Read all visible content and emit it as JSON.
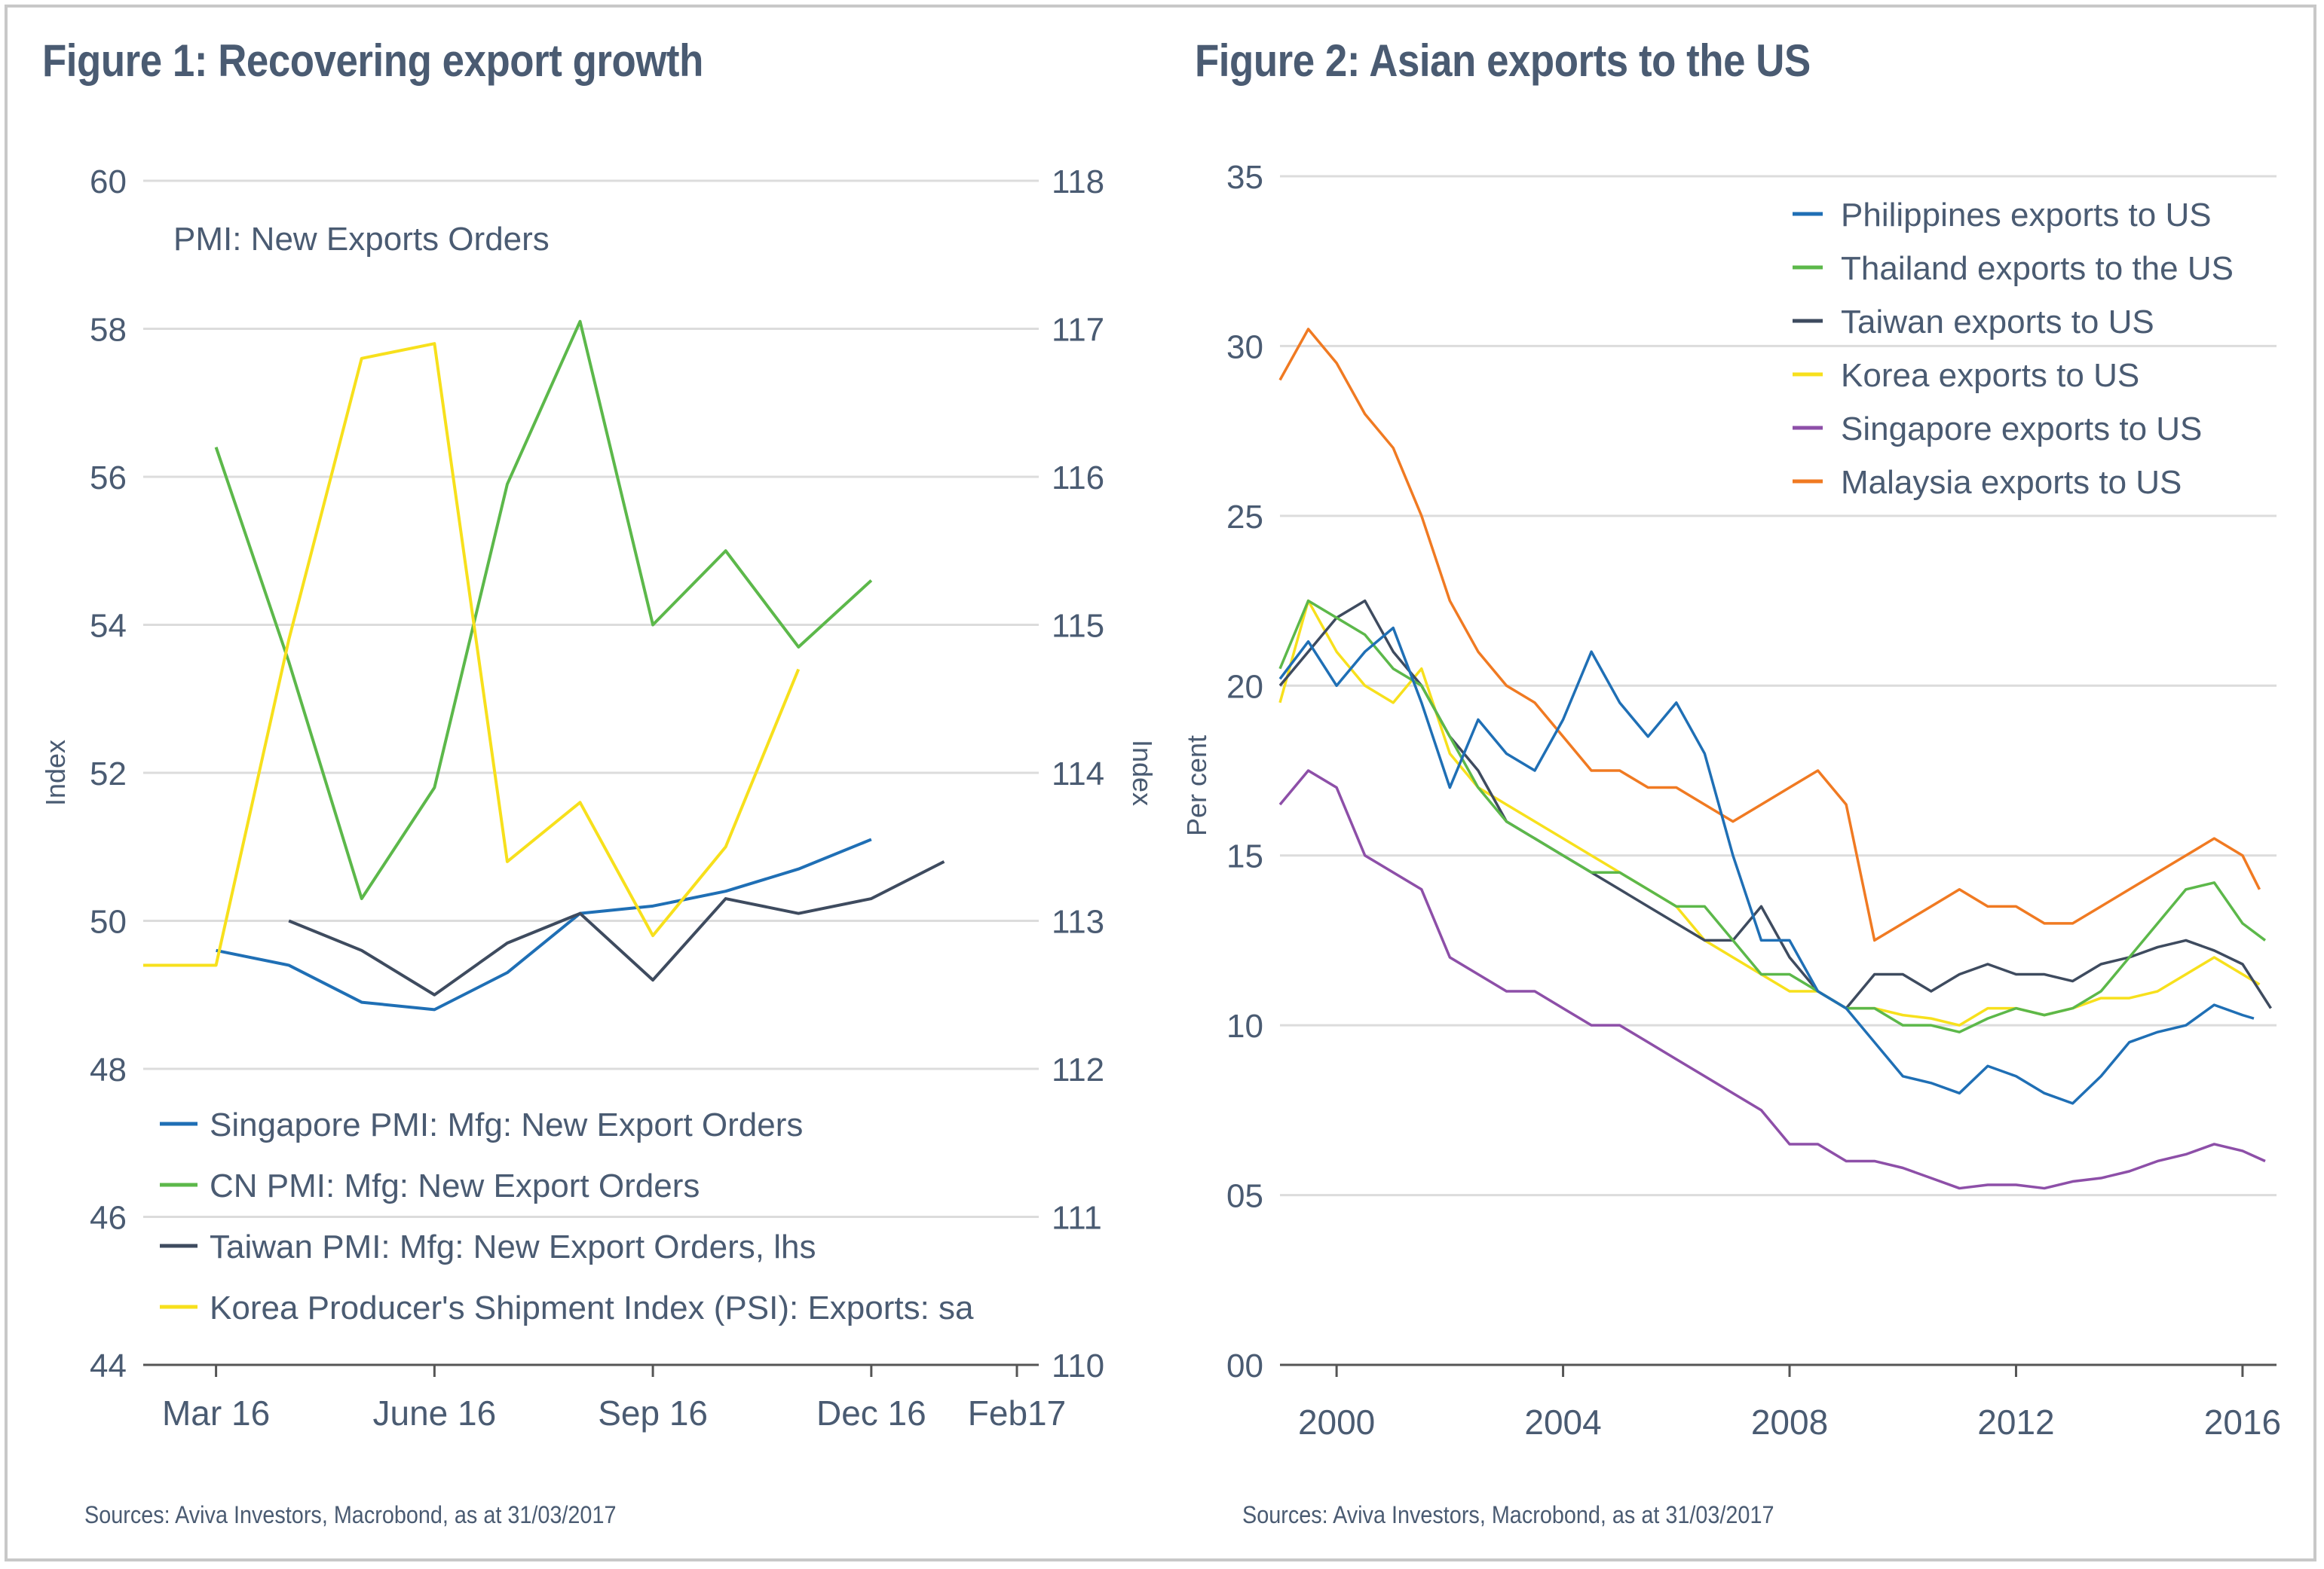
{
  "figure1": {
    "title": "Figure 1: Recovering export growth",
    "source": "Sources: Aviva Investors, Macrobond, as at 31/03/2017"
  },
  "figure2": {
    "title": "Figure 2: Asian exports to the US",
    "source": "Sources: Aviva Investors, Macrobond, as at 31/03/2017"
  },
  "chart_data": [
    {
      "type": "line",
      "annotation": "PMI: New Exports Orders",
      "ylabel_left": "Index",
      "ylabel_right": "Index",
      "ylim_left": [
        44,
        60
      ],
      "ylim_right": [
        110,
        118
      ],
      "yticks_left": [
        "44",
        "46",
        "48",
        "50",
        "52",
        "54",
        "56",
        "58",
        "60"
      ],
      "yticks_right": [
        "110",
        "111",
        "112",
        "113",
        "114",
        "115",
        "116",
        "117",
        "118"
      ],
      "x_labels": [
        "Mar 16",
        "June 16",
        "Sep 16",
        "Dec 16",
        "Feb17"
      ],
      "x_label_months": [
        2,
        5,
        8,
        11,
        13
      ],
      "xlim_months": [
        1,
        13.3
      ],
      "grid": true,
      "legend_position": "bottom-left",
      "series": [
        {
          "name": "Singapore PMI: Mfg: New Export Orders",
          "axis": "left",
          "color": "#1f6fb5",
          "months": [
            2,
            3,
            4,
            5,
            6,
            7,
            8,
            9,
            10,
            11,
            12
          ],
          "values": [
            49.6,
            49.4,
            48.9,
            48.8,
            49.3,
            50.1,
            50.2,
            50.4,
            50.7,
            51.1,
            null
          ]
        },
        {
          "name": "CN PMI: Mfg: New Export Orders",
          "axis": "left",
          "color": "#5cb84a",
          "months": [
            2,
            3,
            4,
            5,
            6,
            7,
            8,
            9,
            10,
            11,
            12
          ],
          "values": [
            56.4,
            53.5,
            50.3,
            51.8,
            55.9,
            58.1,
            54.0,
            55.0,
            53.7,
            54.6,
            null
          ]
        },
        {
          "name": "Taiwan PMI: Mfg: New Export Orders, lhs",
          "axis": "left",
          "color": "#3e4b5f",
          "months": [
            3,
            4,
            5,
            6,
            7,
            8,
            9,
            10,
            11,
            12
          ],
          "values": [
            50.0,
            49.6,
            49.0,
            49.7,
            50.1,
            49.2,
            50.3,
            50.1,
            50.3,
            50.8
          ]
        },
        {
          "name": "Korea Producer's Shipment Index (PSI): Exports: sa",
          "axis": "right",
          "color": "#f7e01c",
          "months": [
            1,
            2,
            3,
            4,
            5,
            6,
            7,
            8,
            9,
            10
          ],
          "values": [
            112.7,
            112.7,
            114.9,
            116.8,
            116.9,
            113.4,
            113.8,
            112.9,
            113.5,
            114.7
          ]
        }
      ]
    },
    {
      "type": "line",
      "ylabel": "Per cent",
      "ylim": [
        0,
        35
      ],
      "yticks": [
        "00",
        "05",
        "10",
        "15",
        "20",
        "25",
        "30",
        "35"
      ],
      "xticks": [
        2000,
        2004,
        2008,
        2012,
        2016
      ],
      "xlim": [
        1999.0,
        2016.6
      ],
      "grid": true,
      "legend_position": "top-right",
      "series": [
        {
          "name": "Philippines exports to US",
          "color": "#1f6fb5",
          "x": [
            1999.0,
            1999.5,
            2000.0,
            2000.5,
            2001.0,
            2001.5,
            2002.0,
            2002.5,
            2003.0,
            2003.5,
            2004.0,
            2004.5,
            2005.0,
            2005.5,
            2006.0,
            2006.5,
            2007.0,
            2007.5,
            2008.0,
            2008.5,
            2009.0,
            2009.5,
            2010.0,
            2010.5,
            2011.0,
            2011.5,
            2012.0,
            2012.5,
            2013.0,
            2013.5,
            2014.0,
            2014.5,
            2015.0,
            2015.5,
            2016.0,
            2016.2
          ],
          "y": [
            20.2,
            21.3,
            20.0,
            21.0,
            21.7,
            19.5,
            17.0,
            19.0,
            18.0,
            17.5,
            19.0,
            21.0,
            19.5,
            18.5,
            19.5,
            18.0,
            15.0,
            12.5,
            12.5,
            11.0,
            10.5,
            9.5,
            8.5,
            8.3,
            8.0,
            8.8,
            8.5,
            8.0,
            7.7,
            8.5,
            9.5,
            9.8,
            10.0,
            10.6,
            10.3,
            10.2
          ]
        },
        {
          "name": "Thailand exports to the US",
          "color": "#5cb84a",
          "x": [
            1999.0,
            1999.5,
            2000.0,
            2000.5,
            2001.0,
            2001.5,
            2002.0,
            2002.5,
            2003.0,
            2003.5,
            2004.0,
            2004.5,
            2005.0,
            2005.5,
            2006.0,
            2006.5,
            2007.0,
            2007.5,
            2008.0,
            2008.5,
            2009.0,
            2009.5,
            2010.0,
            2010.5,
            2011.0,
            2011.5,
            2012.0,
            2012.5,
            2013.0,
            2013.5,
            2014.0,
            2014.5,
            2015.0,
            2015.5,
            2016.0,
            2016.4
          ],
          "y": [
            20.5,
            22.5,
            22.0,
            21.5,
            20.5,
            20.0,
            18.5,
            17.0,
            16.0,
            15.5,
            15.0,
            14.5,
            14.5,
            14.0,
            13.5,
            13.5,
            12.5,
            11.5,
            11.5,
            11.0,
            10.5,
            10.5,
            10.0,
            10.0,
            9.8,
            10.2,
            10.5,
            10.3,
            10.5,
            11.0,
            12.0,
            13.0,
            14.0,
            14.2,
            13.0,
            12.5
          ]
        },
        {
          "name": "Taiwan exports to US",
          "color": "#3e4b5f",
          "x": [
            1999.0,
            1999.5,
            2000.0,
            2000.5,
            2001.0,
            2001.5,
            2002.0,
            2002.5,
            2003.0,
            2003.5,
            2004.0,
            2004.5,
            2005.0,
            2005.5,
            2006.0,
            2006.5,
            2007.0,
            2007.5,
            2008.0,
            2008.5,
            2009.0,
            2009.5,
            2010.0,
            2010.5,
            2011.0,
            2011.5,
            2012.0,
            2012.5,
            2013.0,
            2013.5,
            2014.0,
            2014.5,
            2015.0,
            2015.5,
            2016.0,
            2016.5
          ],
          "y": [
            20.0,
            21.0,
            22.0,
            22.5,
            21.0,
            20.0,
            18.5,
            17.5,
            16.0,
            15.5,
            15.0,
            14.5,
            14.0,
            13.5,
            13.0,
            12.5,
            12.5,
            13.5,
            12.0,
            11.0,
            10.5,
            11.5,
            11.5,
            11.0,
            11.5,
            11.8,
            11.5,
            11.5,
            11.3,
            11.8,
            12.0,
            12.3,
            12.5,
            12.2,
            11.8,
            10.5
          ]
        },
        {
          "name": "Korea exports to US",
          "color": "#f7e01c",
          "x": [
            1999.0,
            1999.5,
            2000.0,
            2000.5,
            2001.0,
            2001.5,
            2002.0,
            2002.5,
            2003.0,
            2003.5,
            2004.0,
            2004.5,
            2005.0,
            2005.5,
            2006.0,
            2006.5,
            2007.0,
            2007.5,
            2008.0,
            2008.5,
            2009.0,
            2009.5,
            2010.0,
            2010.5,
            2011.0,
            2011.5,
            2012.0,
            2012.5,
            2013.0,
            2013.5,
            2014.0,
            2014.5,
            2015.0,
            2015.5,
            2016.0,
            2016.3
          ],
          "y": [
            19.5,
            22.5,
            21.0,
            20.0,
            19.5,
            20.5,
            18.0,
            17.0,
            16.5,
            16.0,
            15.5,
            15.0,
            14.5,
            14.0,
            13.5,
            12.5,
            12.0,
            11.5,
            11.0,
            11.0,
            10.5,
            10.5,
            10.3,
            10.2,
            10.0,
            10.5,
            10.5,
            10.3,
            10.5,
            10.8,
            10.8,
            11.0,
            11.5,
            12.0,
            11.5,
            11.2
          ]
        },
        {
          "name": "Singapore exports to US",
          "color": "#8d4fa8",
          "x": [
            1999.0,
            1999.5,
            2000.0,
            2000.5,
            2001.0,
            2001.5,
            2002.0,
            2002.5,
            2003.0,
            2003.5,
            2004.0,
            2004.5,
            2005.0,
            2005.5,
            2006.0,
            2006.5,
            2007.0,
            2007.5,
            2008.0,
            2008.5,
            2009.0,
            2009.5,
            2010.0,
            2010.5,
            2011.0,
            2011.5,
            2012.0,
            2012.5,
            2013.0,
            2013.5,
            2014.0,
            2014.5,
            2015.0,
            2015.5,
            2016.0,
            2016.4
          ],
          "y": [
            16.5,
            17.5,
            17.0,
            15.0,
            14.5,
            14.0,
            12.0,
            11.5,
            11.0,
            11.0,
            10.5,
            10.0,
            10.0,
            9.5,
            9.0,
            8.5,
            8.0,
            7.5,
            6.5,
            6.5,
            6.0,
            6.0,
            5.8,
            5.5,
            5.2,
            5.3,
            5.3,
            5.2,
            5.4,
            5.5,
            5.7,
            6.0,
            6.2,
            6.5,
            6.3,
            6.0
          ]
        },
        {
          "name": "Malaysia exports to US",
          "color": "#f07a22",
          "x": [
            1999.0,
            1999.5,
            2000.0,
            2000.5,
            2001.0,
            2001.5,
            2002.0,
            2002.5,
            2003.0,
            2003.5,
            2004.0,
            2004.5,
            2005.0,
            2005.5,
            2006.0,
            2006.5,
            2007.0,
            2007.5,
            2008.0,
            2008.5,
            2009.0,
            2009.5,
            2010.0,
            2010.5,
            2011.0,
            2011.5,
            2012.0,
            2012.5,
            2013.0,
            2013.5,
            2014.0,
            2014.5,
            2015.0,
            2015.5,
            2016.0,
            2016.3
          ],
          "y": [
            29.0,
            30.5,
            29.5,
            28.0,
            27.0,
            25.0,
            22.5,
            21.0,
            20.0,
            19.5,
            18.5,
            17.5,
            17.5,
            17.0,
            17.0,
            16.5,
            16.0,
            16.5,
            17.0,
            17.5,
            16.5,
            12.5,
            13.0,
            13.5,
            14.0,
            13.5,
            13.5,
            13.0,
            13.0,
            13.5,
            14.0,
            14.5,
            15.0,
            15.5,
            15.0,
            14.0
          ]
        }
      ]
    }
  ]
}
